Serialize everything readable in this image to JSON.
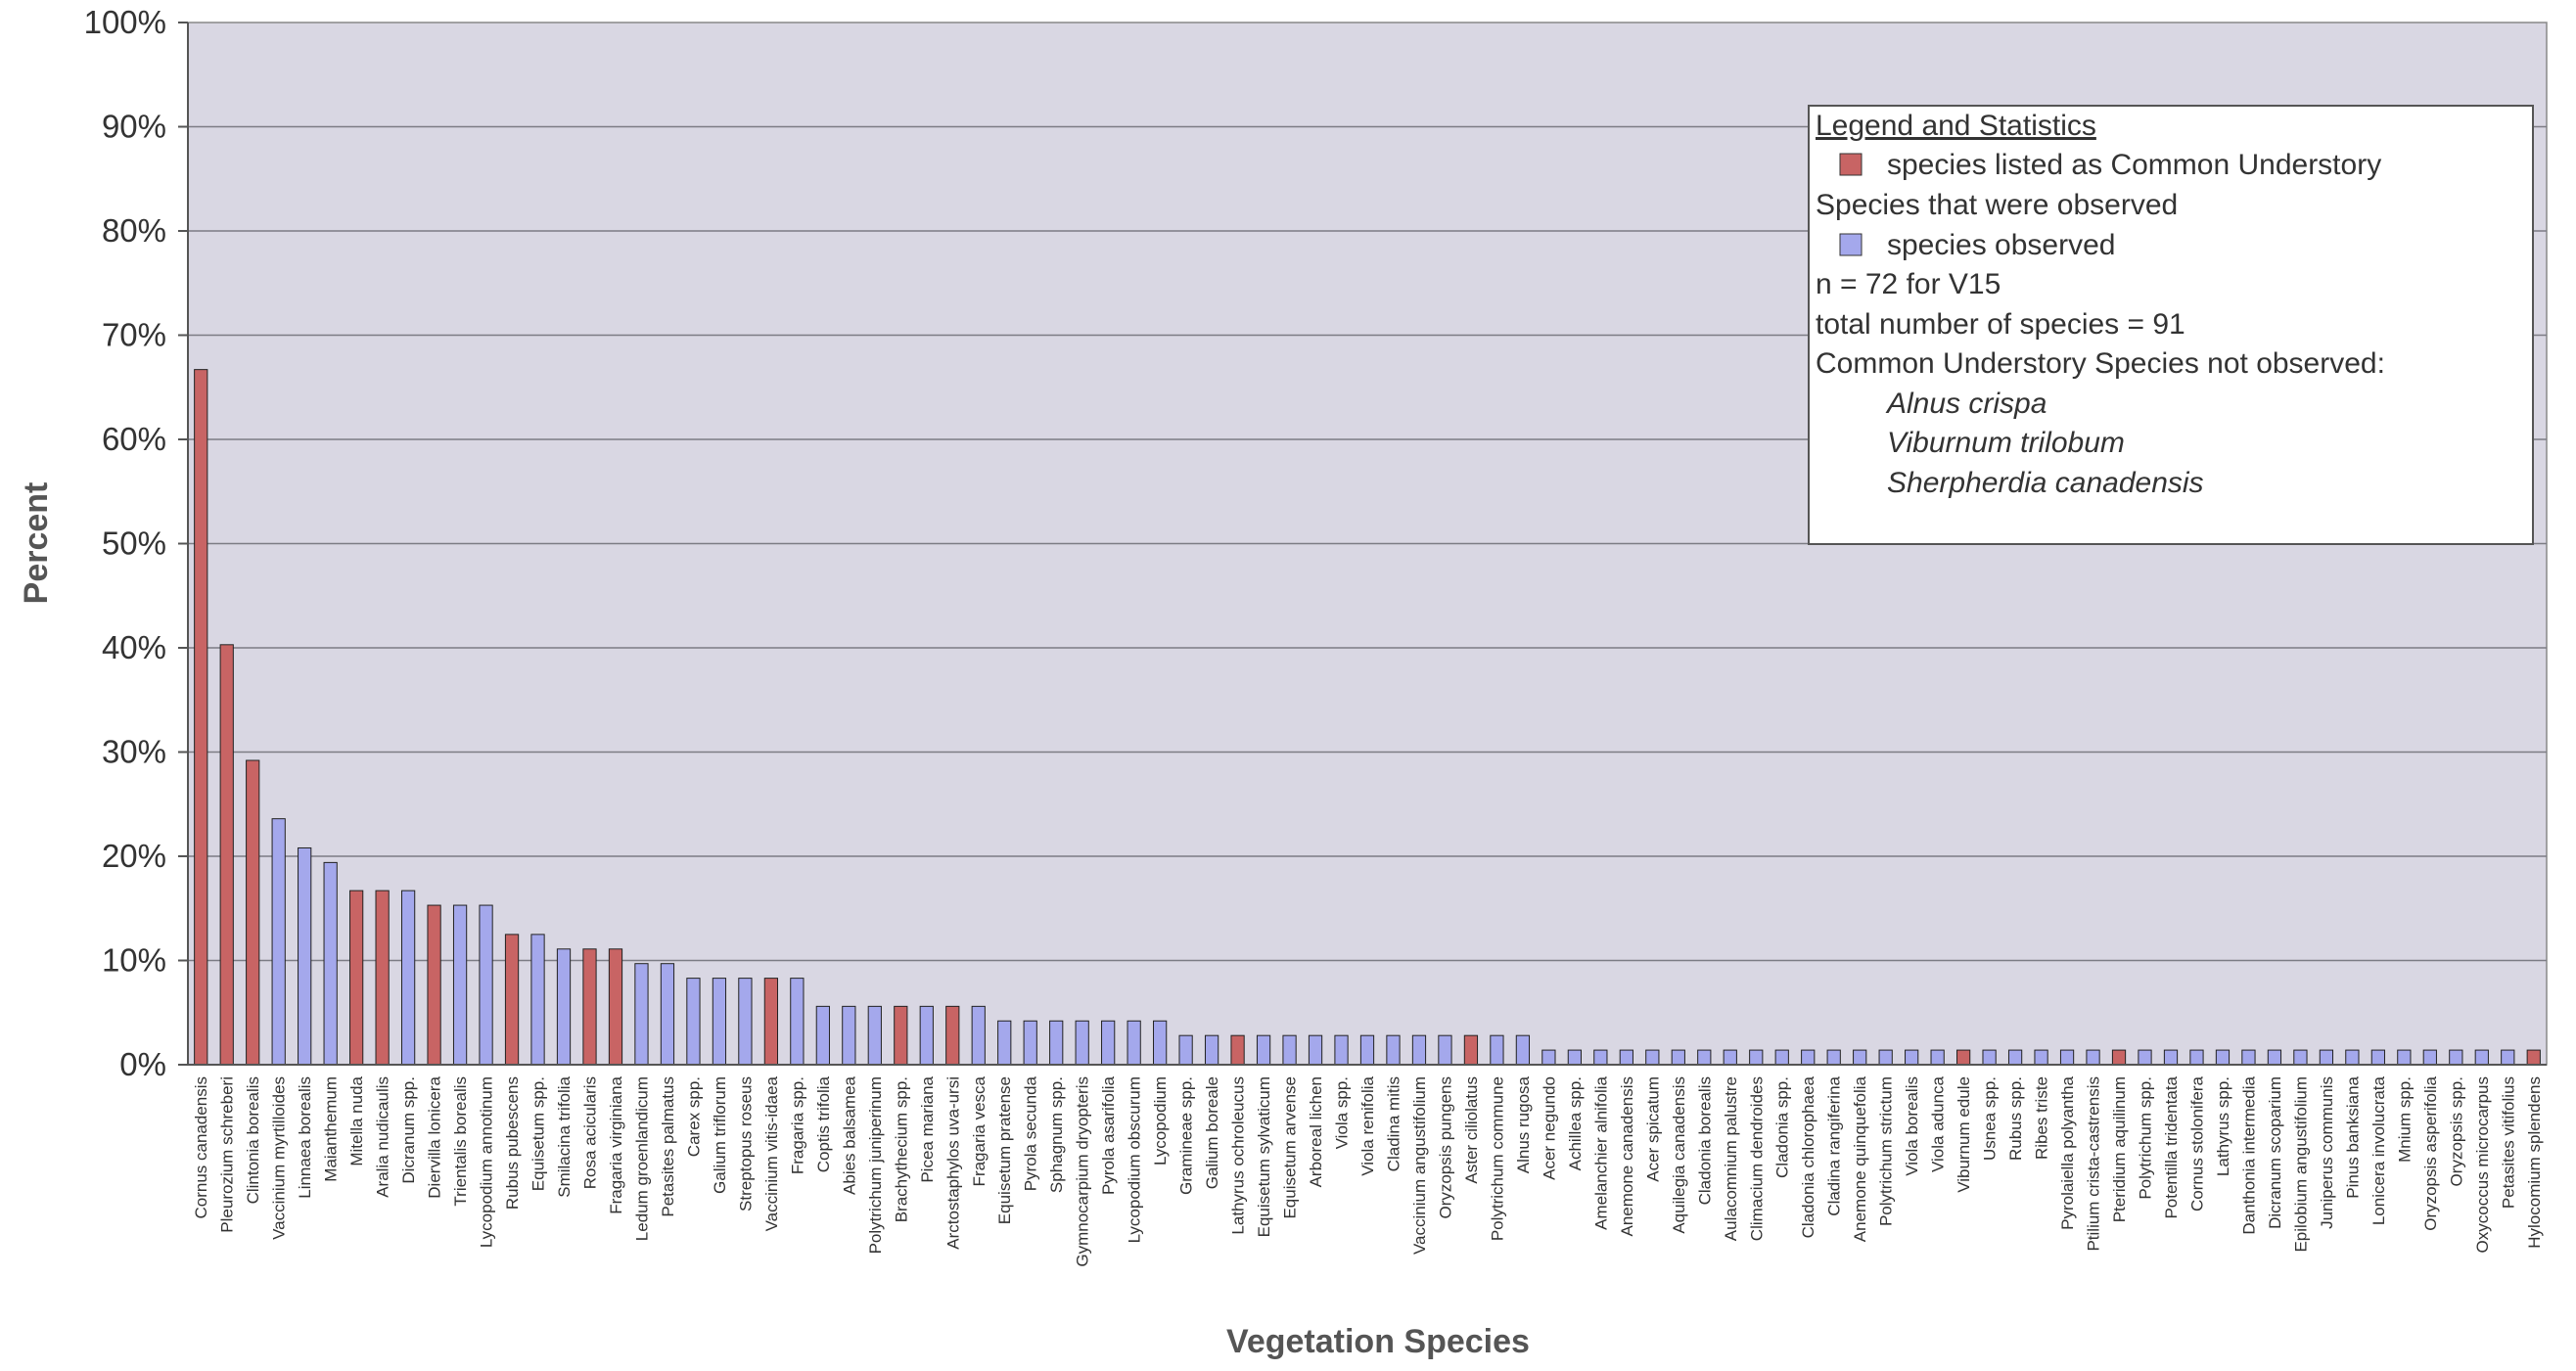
{
  "chart_data": {
    "type": "bar",
    "xlabel": "Vegetation Species",
    "ylabel": "Percent",
    "ylim": [
      0,
      100
    ],
    "yticks": [
      "0%",
      "10%",
      "20%",
      "30%",
      "40%",
      "50%",
      "60%",
      "70%",
      "80%",
      "90%",
      "100%"
    ],
    "grid": true,
    "colors": {
      "common": "#c86464",
      "observed": "#a4a8ec",
      "plot_bg": "#d9d7e3"
    },
    "categories": [
      "Cornus canadensis",
      "Pleurozium schreberi",
      "Clintonia borealis",
      "Vaccinium myrtilloides",
      "Linnaea borealis",
      "Maianthemum",
      "Mitella nuda",
      "Aralia nudicaulis",
      "Dicranum spp.",
      "Diervilla lonicera",
      "Trientalis borealis",
      "Lycopodium annotinum",
      "Rubus pubescens",
      "Equisetum spp.",
      "Smilacina trifolia",
      "Rosa acicularis",
      "Fragaria virginiana",
      "Ledum groenlandicum",
      "Petasites palmatus",
      "Carex spp.",
      "Galium triflorum",
      "Streptopus roseus",
      "Vaccinium vitis-idaea",
      "Fragaria spp.",
      "Coptis trifolia",
      "Abies balsamea",
      "Polytrichum juniperinum",
      "Brachythecium spp.",
      "Picea mariana",
      "Arctostaphylos uva-ursi",
      "Fragaria vesca",
      "Equisetum pratense",
      "Pyrola secunda",
      "Sphagnum spp.",
      "Gymnocarpium dryopteris",
      "Pyrola asarifolia",
      "Lycopodium obscurum",
      "Lycopodium",
      "Gramineae spp.",
      "Galium boreale",
      "Lathyrus ochroleucus",
      "Equisetum sylvaticum",
      "Equisetum arvense",
      "Arboreal lichen",
      "Viola spp.",
      "Viola renifolia",
      "Cladina mitis",
      "Vaccinium angustifolium",
      "Oryzopsis pungens",
      "Aster ciliolatus",
      "Polytrichum commune",
      "Alnus rugosa",
      "Acer negundo",
      "Achillea spp.",
      "Amelanchier alnifolia",
      "Anemone canadensis",
      "Acer spicatum",
      "Aquilegia canadensis",
      "Cladonia borealis",
      "Aulacomnium palustre",
      "Climacium dendroides",
      "Cladonia spp.",
      "Cladonia chlorophaea",
      "Cladina rangiferina",
      "Anemone quinquefolia",
      "Polytrichum strictum",
      "Viola borealis",
      "Viola adunca",
      "Viburnum edule",
      "Usnea spp.",
      "Rubus spp.",
      "Ribes triste",
      "Pyrolaiella polyantha",
      "Ptilium crista-castrensis",
      "Pteridium aquilinum",
      "Polytrichum spp.",
      "Potentilla tridentata",
      "Cornus stolonifera",
      "Lathyrus spp.",
      "Danthonia intermedia",
      "Dicranum scoparium",
      "Epilobium angustifolium",
      "Juniperus communis",
      "Pinus banksiana",
      "Lonicera involucrata",
      "Mnium spp.",
      "Oryzopsis asperifolia",
      "Oryzopsis spp.",
      "Oxycoccus microcarpus",
      "Petasites vitifolius",
      "Hylocomium splendens"
    ],
    "values": [
      66.7,
      40.3,
      29.2,
      23.6,
      20.8,
      19.4,
      16.7,
      16.7,
      16.7,
      15.3,
      15.3,
      15.3,
      12.5,
      12.5,
      11.1,
      11.1,
      11.1,
      9.7,
      9.7,
      8.3,
      8.3,
      8.3,
      8.3,
      8.3,
      5.6,
      5.6,
      5.6,
      5.6,
      5.6,
      5.6,
      5.6,
      4.2,
      4.2,
      4.2,
      4.2,
      4.2,
      4.2,
      4.2,
      2.8,
      2.8,
      2.8,
      2.8,
      2.8,
      2.8,
      2.8,
      2.8,
      2.8,
      2.8,
      2.8,
      2.8,
      2.8,
      2.8,
      1.4,
      1.4,
      1.4,
      1.4,
      1.4,
      1.4,
      1.4,
      1.4,
      1.4,
      1.4,
      1.4,
      1.4,
      1.4,
      1.4,
      1.4,
      1.4,
      1.4,
      1.4,
      1.4,
      1.4,
      1.4,
      1.4,
      1.4,
      1.4,
      1.4,
      1.4,
      1.4,
      1.4,
      1.4,
      1.4,
      1.4,
      1.4,
      1.4,
      1.4,
      1.4,
      1.4,
      1.4,
      1.4,
      1.4
    ],
    "common_understory": [
      true,
      true,
      true,
      false,
      false,
      false,
      true,
      true,
      false,
      true,
      false,
      false,
      true,
      false,
      false,
      true,
      true,
      false,
      false,
      false,
      false,
      false,
      true,
      false,
      false,
      false,
      false,
      true,
      false,
      true,
      false,
      false,
      false,
      false,
      false,
      false,
      false,
      false,
      false,
      false,
      true,
      false,
      false,
      false,
      false,
      false,
      false,
      false,
      false,
      true,
      false,
      false,
      false,
      false,
      false,
      false,
      false,
      false,
      false,
      false,
      false,
      false,
      false,
      false,
      false,
      false,
      false,
      false,
      true,
      false,
      false,
      false,
      false,
      false,
      true,
      false,
      false,
      false,
      false,
      false,
      false,
      false,
      false,
      false,
      false,
      false,
      false,
      false,
      false,
      false,
      true
    ],
    "legend": {
      "placement": "top-right",
      "title": "Legend and Statistics",
      "common_label": "species listed as Common Understory",
      "observed_heading": "Species that were observed",
      "observed_label": "species observed",
      "n_text": "n = 72 for V15",
      "total_text": "total number of species = 91",
      "not_observed_heading": "Common Understory Species not observed:",
      "not_observed": [
        "Alnus crispa",
        "Viburnum trilobum",
        "Sherpherdia canadensis"
      ]
    }
  }
}
